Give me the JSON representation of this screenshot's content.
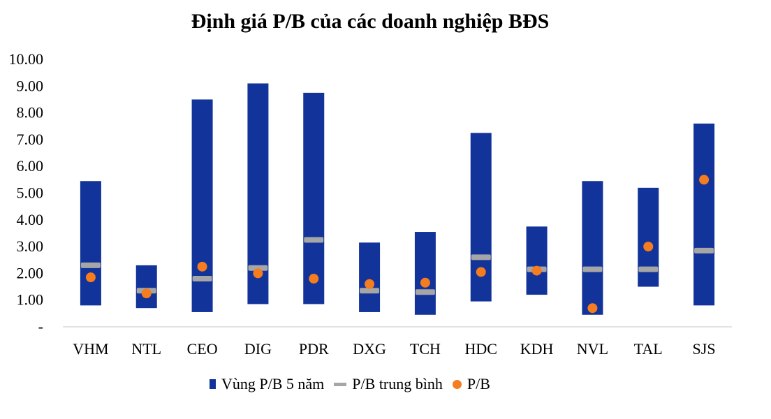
{
  "chart_data": {
    "type": "bar",
    "title": "Định giá P/B của các doanh nghiệp BĐS",
    "categories": [
      "VHM",
      "NTL",
      "CEO",
      "DIG",
      "PDR",
      "DXG",
      "TCH",
      "HDC",
      "KDH",
      "NVL",
      "TAL",
      "SJS"
    ],
    "y_tick_labels": [
      "-",
      "1.00",
      "2.00",
      "3.00",
      "4.00",
      "5.00",
      "6.00",
      "7.00",
      "8.00",
      "9.00",
      "10.00"
    ],
    "ylim": [
      0,
      10
    ],
    "grid": false,
    "legend_position": "bottom",
    "series": [
      {
        "name": "Vùng P/B 5 năm",
        "type": "range-bar",
        "low": [
          0.8,
          0.7,
          0.55,
          0.85,
          0.85,
          0.55,
          0.45,
          0.95,
          1.2,
          0.45,
          1.5,
          0.8
        ],
        "high": [
          5.45,
          2.3,
          8.5,
          9.1,
          8.75,
          3.15,
          3.55,
          7.25,
          3.75,
          5.45,
          5.2,
          7.6
        ]
      },
      {
        "name": "P/B trung bình",
        "type": "marker-line",
        "values": [
          2.3,
          1.35,
          1.8,
          2.2,
          3.25,
          1.35,
          1.3,
          2.6,
          2.15,
          2.15,
          2.15,
          2.85
        ]
      },
      {
        "name": "P/B",
        "type": "dot",
        "values": [
          1.85,
          1.25,
          2.25,
          2.0,
          1.8,
          1.6,
          1.65,
          2.05,
          2.1,
          0.7,
          3.0,
          5.5
        ]
      }
    ],
    "colors": {
      "range": "#123399",
      "average": "#a6a6a6",
      "current": "#f57c1f"
    }
  }
}
